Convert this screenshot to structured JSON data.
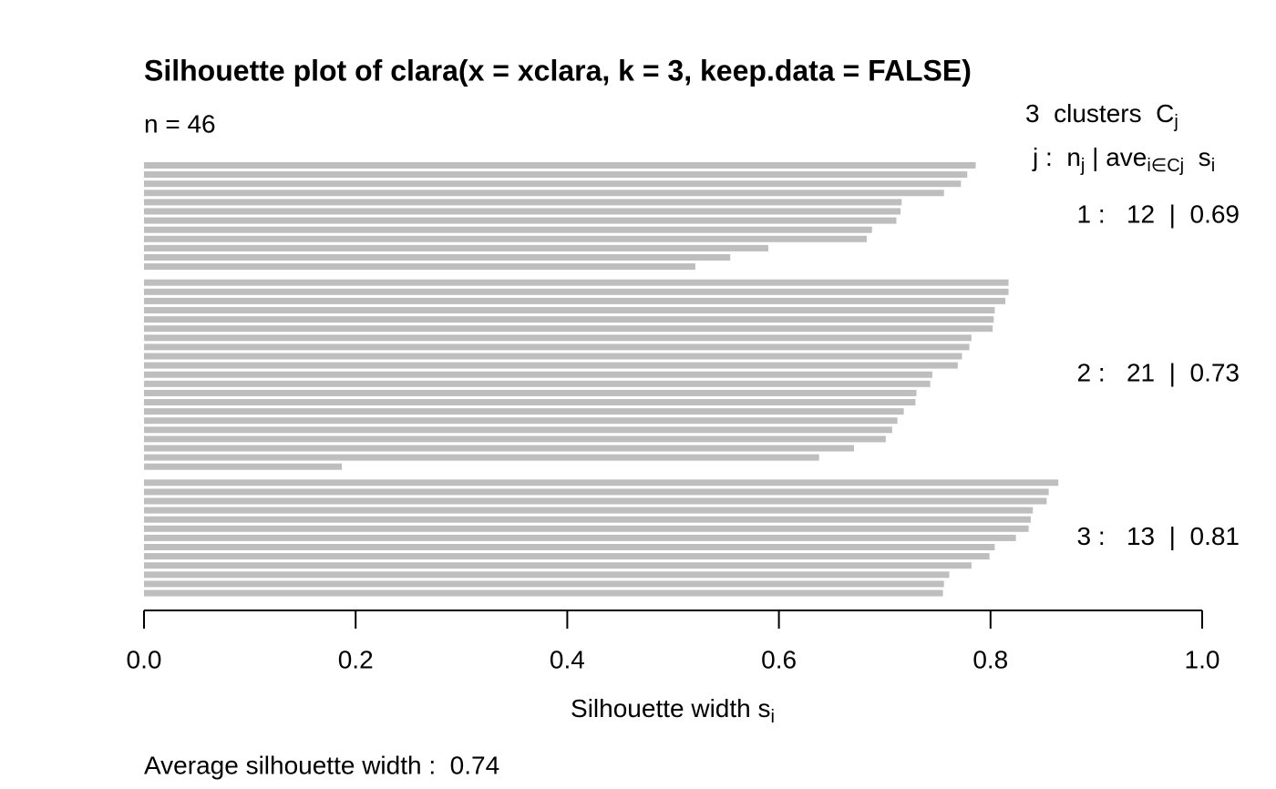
{
  "chart_data": {
    "type": "bar",
    "orientation": "horizontal",
    "title": "Silhouette plot of clara(x = xclara, k = 3, keep.data = FALSE)",
    "subtitle": "n = 46",
    "legend_title": [
      "3  clusters  C",
      "j"
    ],
    "legend_header": [
      "j :  n",
      "j",
      " | ave",
      "i∈Cj",
      "  s",
      "i"
    ],
    "xlabel": [
      "Silhouette width s",
      "i"
    ],
    "footer": "Average silhouette width :  0.74",
    "xlim": [
      0,
      1
    ],
    "xticks": [
      {
        "value": 0,
        "label": "0.0"
      },
      0.2,
      0.4,
      0.6,
      0.8,
      {
        "value": 1,
        "label": "1.0"
      }
    ],
    "series": [
      {
        "name": "1 :   12  |  0.69",
        "color": "#bebebe",
        "values": [
          0.786,
          0.778,
          0.772,
          0.756,
          0.716,
          0.715,
          0.711,
          0.688,
          0.683,
          0.59,
          0.554,
          0.521
        ]
      },
      {
        "name": "2 :   21  |  0.73",
        "color": "#bebebe",
        "values": [
          0.817,
          0.817,
          0.814,
          0.804,
          0.803,
          0.802,
          0.782,
          0.78,
          0.773,
          0.769,
          0.745,
          0.743,
          0.73,
          0.729,
          0.718,
          0.712,
          0.707,
          0.701,
          0.671,
          0.638,
          0.187
        ]
      },
      {
        "name": "3 :   13  |  0.81",
        "color": "#bebebe",
        "values": [
          0.864,
          0.855,
          0.853,
          0.84,
          0.838,
          0.836,
          0.824,
          0.804,
          0.799,
          0.782,
          0.761,
          0.756,
          0.755
        ]
      }
    ]
  }
}
